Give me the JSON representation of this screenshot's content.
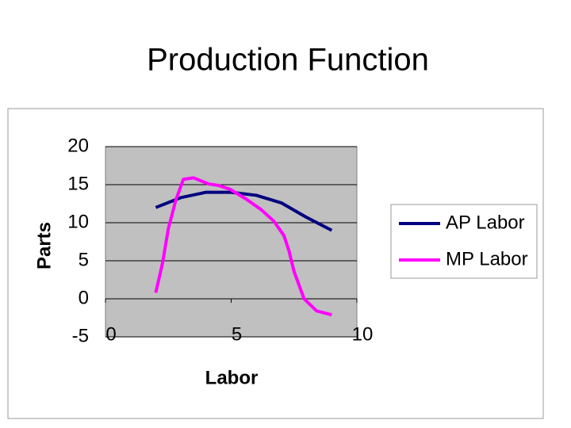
{
  "chart_data": {
    "type": "line",
    "title": "Production Function",
    "x_label": "Labor",
    "y_label": "Parts",
    "xlim": [
      0,
      10
    ],
    "xticks": [
      0,
      5,
      10
    ],
    "ylim": [
      -5,
      20
    ],
    "yticks": [
      -5,
      0,
      5,
      10,
      15,
      20
    ],
    "grid": true,
    "legend": "right",
    "series": [
      {
        "name": "AP Labor",
        "color": "#000080",
        "x": [
          2,
          3,
          4,
          5,
          6,
          7,
          8,
          9
        ],
        "values": [
          12,
          13.3,
          14,
          14,
          13.6,
          12.6,
          10.7,
          9
        ]
      },
      {
        "name": "MP Labor",
        "color": "#ff00ff",
        "x": [
          2,
          2.27,
          2.5,
          2.8,
          3.1,
          3.5,
          4.1,
          4.5,
          4.95,
          5.6,
          6.2,
          6.7,
          7.1,
          7.3,
          7.5,
          7.9,
          8.4,
          9
        ],
        "values": [
          0.8,
          4.7,
          9.2,
          13,
          15.7,
          15.9,
          15.1,
          14.9,
          14.4,
          13.1,
          11.7,
          10.2,
          8.3,
          6.3,
          3.6,
          0,
          -1.6,
          -2.1
        ]
      }
    ]
  }
}
